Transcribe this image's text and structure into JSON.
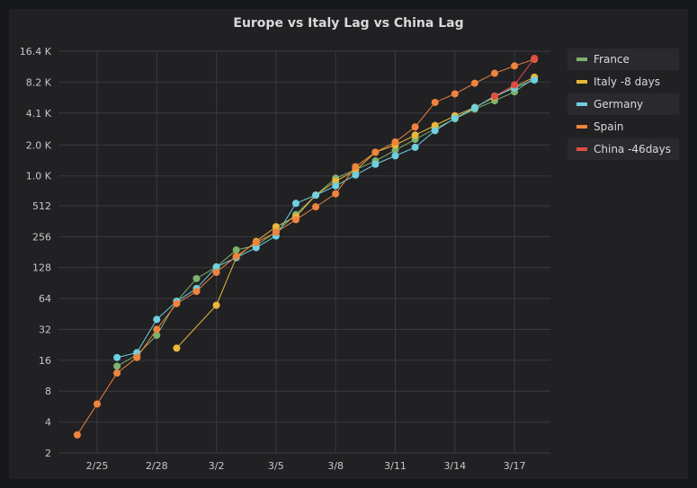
{
  "panel": {
    "title": "Europe vs Italy Lag vs China Lag"
  },
  "chart_data": {
    "type": "line",
    "title": "Europe vs Italy Lag vs China Lag",
    "y_scale": "log2",
    "y_ticks": [
      {
        "value": 2,
        "label": "2"
      },
      {
        "value": 4,
        "label": "4"
      },
      {
        "value": 8,
        "label": "8"
      },
      {
        "value": 16,
        "label": "16"
      },
      {
        "value": 32,
        "label": "32"
      },
      {
        "value": 64,
        "label": "64"
      },
      {
        "value": 128,
        "label": "128"
      },
      {
        "value": 256,
        "label": "256"
      },
      {
        "value": 512,
        "label": "512"
      },
      {
        "value": 1000,
        "label": "1.0 K"
      },
      {
        "value": 2000,
        "label": "2.0 K"
      },
      {
        "value": 4100,
        "label": "4.1 K"
      },
      {
        "value": 8200,
        "label": "8.2 K"
      },
      {
        "value": 16400,
        "label": "16.4 K"
      }
    ],
    "ylim": [
      2,
      16400
    ],
    "x_dates": [
      "2/24",
      "2/25",
      "2/26",
      "2/27",
      "2/28",
      "2/29",
      "3/1",
      "3/2",
      "3/3",
      "3/4",
      "3/5",
      "3/6",
      "3/7",
      "3/8",
      "3/9",
      "3/10",
      "3/11",
      "3/12",
      "3/13",
      "3/14",
      "3/15",
      "3/16",
      "3/17",
      "3/18"
    ],
    "x_tick_labels": [
      "2/25",
      "2/28",
      "3/2",
      "3/5",
      "3/8",
      "3/11",
      "3/14",
      "3/17"
    ],
    "grid": true,
    "legend_position": "right",
    "series": [
      {
        "name": "France",
        "color": "#7eb26d",
        "x": [
          "2/25",
          "2/26",
          "2/27",
          "2/28",
          "2/29",
          "3/1",
          "3/2",
          "3/3",
          "3/4",
          "3/5",
          "3/6",
          "3/7",
          "3/8",
          "3/9",
          "3/10",
          "3/11",
          "3/12",
          "3/13",
          "3/14",
          "3/15",
          "3/16",
          "3/17",
          "3/18"
        ],
        "values": [
          null,
          14,
          18,
          28,
          60,
          100,
          130,
          190,
          210,
          285,
          420,
          650,
          950,
          1150,
          1400,
          1780,
          2270,
          2880,
          3600,
          4480,
          5400,
          6600,
          9000
        ]
      },
      {
        "name": "Italy -8 days",
        "color": "#eab839",
        "x": [
          "2/29",
          "3/1",
          "3/2",
          "3/3",
          "3/4",
          "3/5",
          "3/6",
          "3/7",
          "3/8",
          "3/9",
          "3/10",
          "3/11",
          "3/12",
          "3/13",
          "3/14",
          "3/15",
          "3/16",
          "3/17",
          "3/18"
        ],
        "values": [
          21,
          null,
          55,
          160,
          230,
          320,
          400,
          650,
          890,
          1130,
          1700,
          2000,
          2500,
          3100,
          3850,
          4650,
          5880,
          7380,
          9170
        ]
      },
      {
        "name": "Germany",
        "color": "#6ed0e0",
        "x": [
          "2/25",
          "2/26",
          "2/27",
          "2/28",
          "2/29",
          "3/1",
          "3/2",
          "3/3",
          "3/4",
          "3/5",
          "3/6",
          "3/7",
          "3/8",
          "3/9",
          "3/10",
          "3/11",
          "3/12",
          "3/13",
          "3/14",
          "3/15",
          "3/16",
          "3/17",
          "3/18"
        ],
        "values": [
          null,
          17,
          19,
          40,
          60,
          80,
          130,
          160,
          200,
          260,
          540,
          650,
          800,
          1020,
          1300,
          1570,
          1900,
          2760,
          3650,
          4600,
          6000,
          7200,
          8600
        ]
      },
      {
        "name": "Spain",
        "color": "#ef843c",
        "x": [
          "2/24",
          "2/25",
          "2/26",
          "2/27",
          "2/28",
          "2/29",
          "3/1",
          "3/2",
          "3/3",
          "3/4",
          "3/5",
          "3/6",
          "3/7",
          "3/8",
          "3/9",
          "3/10",
          "3/11",
          "3/12",
          "3/13",
          "3/14",
          "3/15",
          "3/16",
          "3/17",
          "3/18"
        ],
        "values": [
          3,
          6,
          12,
          17,
          32,
          57,
          75,
          115,
          165,
          225,
          282,
          375,
          500,
          670,
          1230,
          1700,
          2140,
          3000,
          5200,
          6300,
          8000,
          10000,
          11800,
          13700
        ]
      },
      {
        "name": "China -46days",
        "color": "#e24d42",
        "x": [
          "3/16",
          "3/17",
          "3/18"
        ],
        "values": [
          5970,
          7700,
          14000
        ]
      }
    ]
  }
}
